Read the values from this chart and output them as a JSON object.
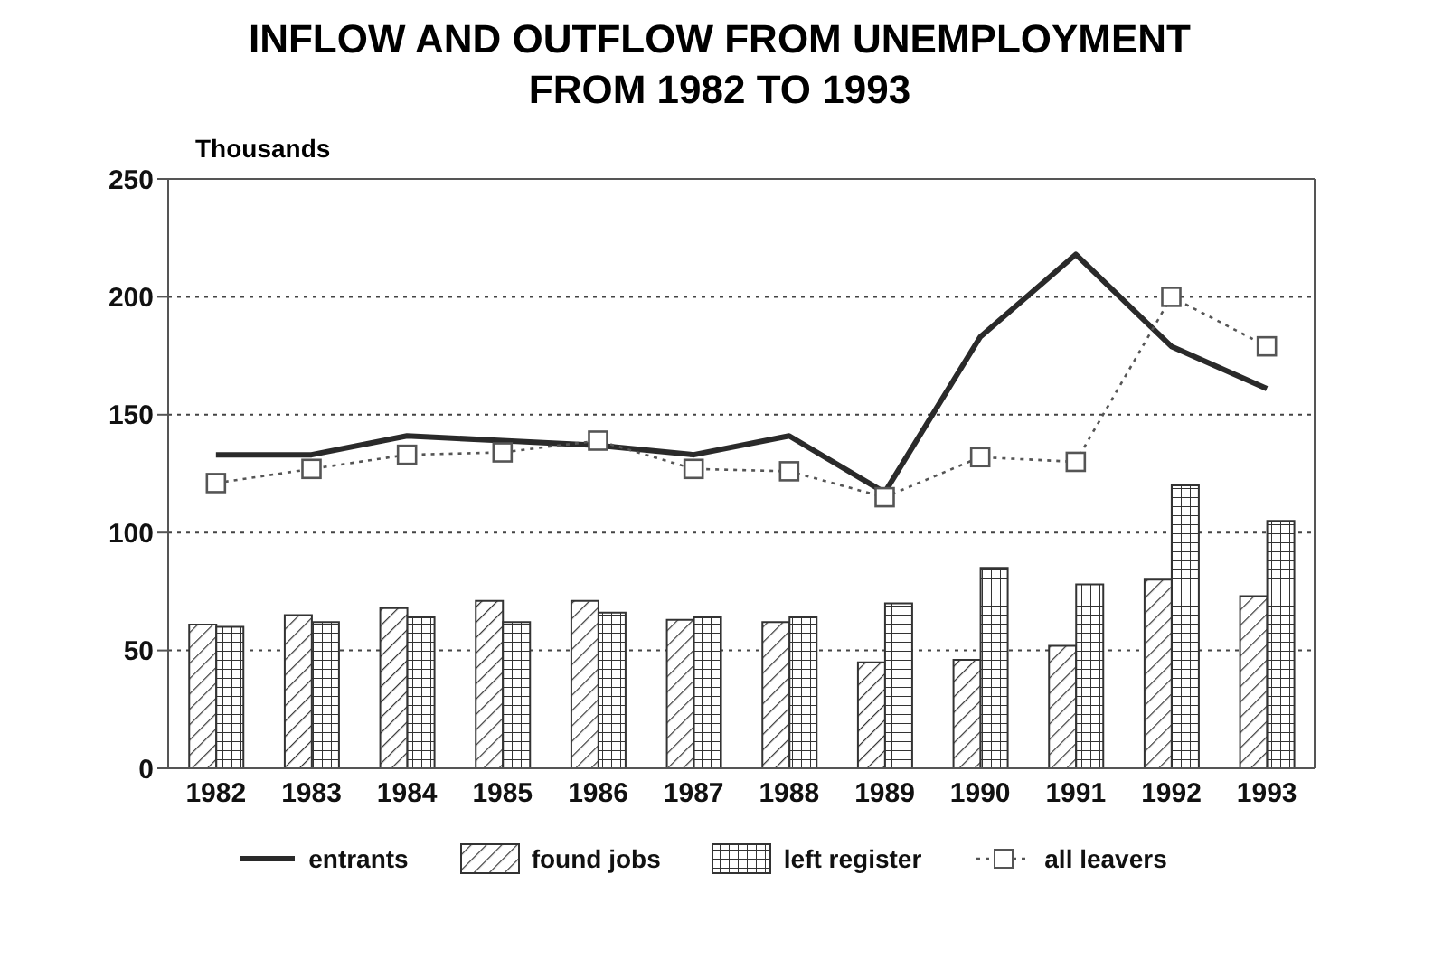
{
  "chart_data": {
    "type": "bar",
    "title": "INFLOW AND OUTFLOW FROM UNEMPLOYMENT\nFROM 1982 TO 1993",
    "ylabel": "Thousands",
    "categories": [
      "1982",
      "1983",
      "1984",
      "1985",
      "1986",
      "1987",
      "1988",
      "1989",
      "1990",
      "1991",
      "1992",
      "1993"
    ],
    "series": [
      {
        "name": "entrants",
        "type": "line",
        "color": "#2a2a2a",
        "line_style": "solid",
        "marker": "none",
        "values": [
          133,
          133,
          141,
          139,
          137,
          133,
          141,
          117,
          183,
          218,
          179,
          161
        ]
      },
      {
        "name": "found jobs",
        "color": "#333333",
        "values": [
          61,
          65,
          68,
          71,
          71,
          63,
          62,
          45,
          46,
          52,
          80,
          73
        ]
      },
      {
        "name": "left register",
        "color": "#333333",
        "values": [
          60,
          62,
          64,
          62,
          66,
          64,
          64,
          70,
          85,
          78,
          120,
          105
        ]
      },
      {
        "name": "all leavers",
        "type": "line",
        "color": "#555555",
        "line_style": "dotted",
        "marker": "square",
        "values": [
          121,
          127,
          133,
          134,
          139,
          127,
          126,
          115,
          132,
          130,
          200,
          179
        ]
      }
    ],
    "ylim": [
      0,
      250
    ],
    "yticks": [
      0,
      50,
      100,
      150,
      200,
      250
    ],
    "grid": "y",
    "legend": "bottom"
  }
}
